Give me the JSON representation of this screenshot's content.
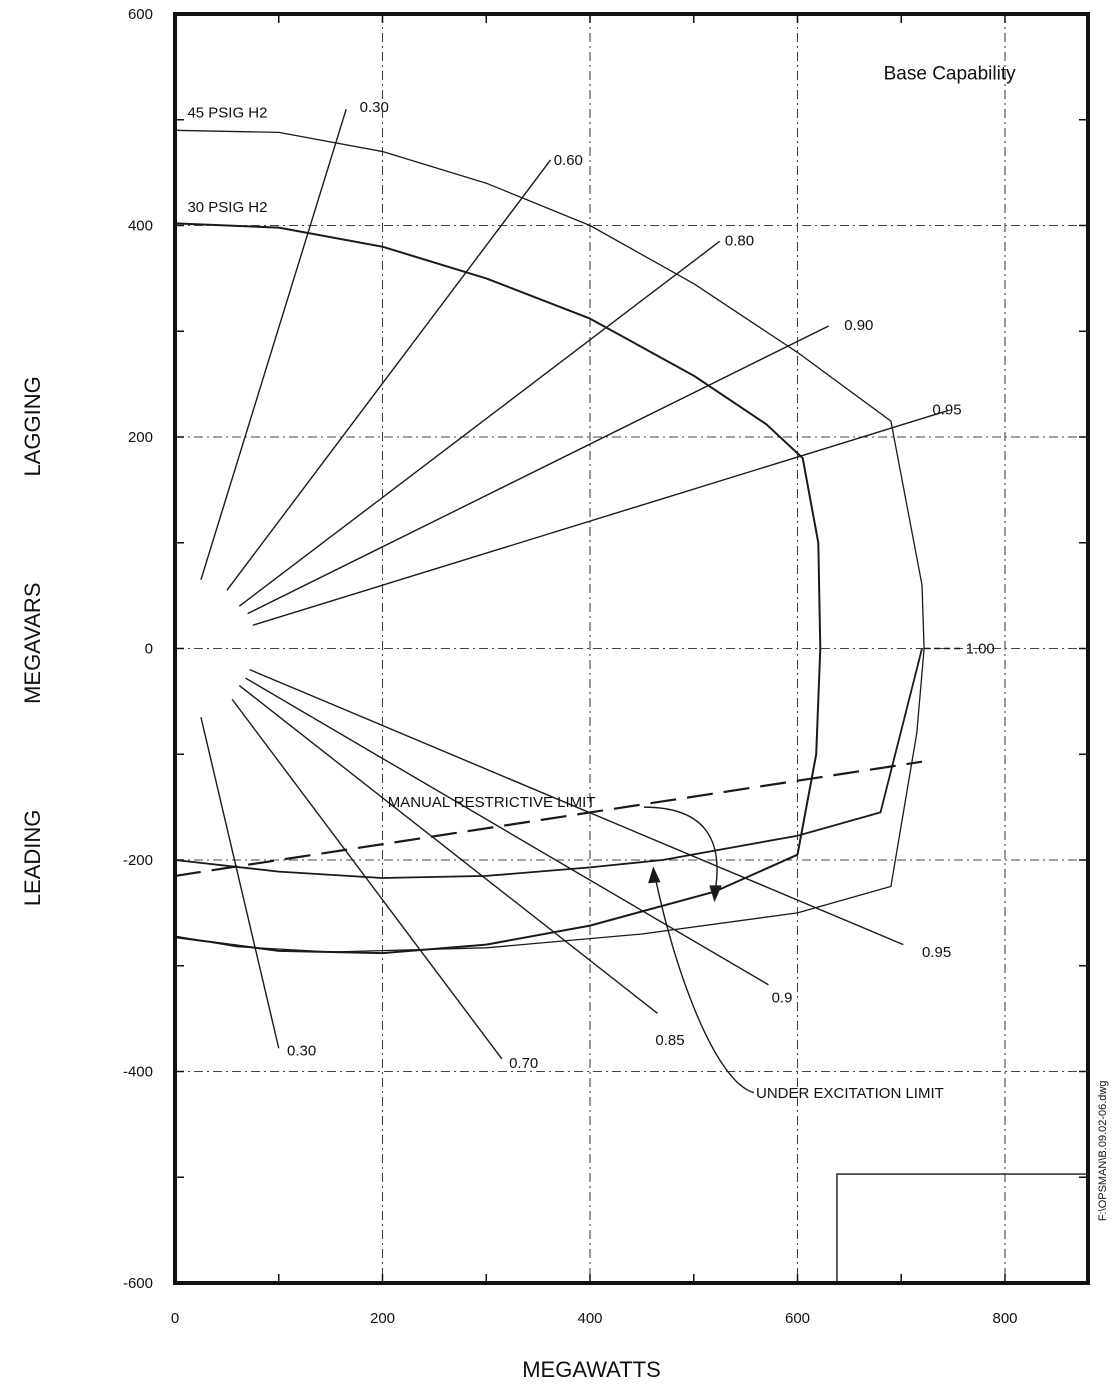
{
  "chart_data": {
    "type": "line",
    "title": "",
    "panel_label": "Base Capability",
    "xlabel": "MEGAWATTS",
    "ylabel_parts": [
      "LEADING",
      "MEGAVARS",
      "LAGGING"
    ],
    "file_ref": "F:\\OPSMAN\\B.09.02-06.dwg",
    "xlim": [
      0,
      880
    ],
    "ylim": [
      -600,
      600
    ],
    "xticks": [
      0,
      200,
      400,
      600,
      800
    ],
    "yticks": [
      600,
      400,
      200,
      0,
      -200,
      -400,
      -600
    ],
    "xtick_labels": [
      "0",
      "200",
      "400",
      "600",
      "800"
    ],
    "ytick_labels": [
      "600",
      "400",
      "200",
      "0",
      "-200",
      "-400",
      "-600"
    ],
    "grid": true,
    "series": [
      {
        "name": "45 PSIG H2",
        "style": "solid",
        "stroke": "#1a1a1a",
        "width": 1.3,
        "x": [
          0,
          100,
          200,
          300,
          400,
          500,
          600,
          690,
          720,
          722
        ],
        "y": [
          490,
          488,
          470,
          440,
          400,
          345,
          280,
          215,
          60,
          0
        ]
      },
      {
        "name": "30 PSIG H2",
        "style": "solid",
        "stroke": "#1a1a1a",
        "width": 2,
        "x": [
          0,
          100,
          200,
          300,
          400,
          500,
          570,
          605,
          620,
          622,
          618,
          600
        ],
        "y": [
          402,
          398,
          380,
          350,
          312,
          258,
          212,
          180,
          100,
          0,
          -100,
          -195
        ]
      },
      {
        "name": "45 PSIG H2 leading",
        "style": "solid",
        "stroke": "#1a1a1a",
        "width": 1.3,
        "x": [
          722,
          715,
          690,
          600,
          450,
          300,
          150,
          60,
          0
        ],
        "y": [
          0,
          -80,
          -225,
          -250,
          -270,
          -283,
          -287,
          -282,
          -272
        ]
      },
      {
        "name": "30 PSIG H2 leading",
        "style": "solid",
        "stroke": "#1a1a1a",
        "width": 2,
        "x": [
          600,
          520,
          400,
          300,
          200,
          100,
          0
        ],
        "y": [
          -195,
          -230,
          -262,
          -280,
          -288,
          -286,
          -273
        ]
      },
      {
        "name": "UNDER EXCITATION LIMIT",
        "style": "solid",
        "stroke": "#1a1a1a",
        "width": 1.8,
        "x": [
          0,
          100,
          200,
          300,
          400,
          470,
          600,
          680,
          720
        ],
        "y": [
          -200,
          -211,
          -217,
          -215,
          -207,
          -200,
          -177,
          -155,
          0
        ]
      },
      {
        "name": "MANUAL RESTRICTIVE LIMIT",
        "style": "dashed",
        "stroke": "#1a1a1a",
        "width": 2.2,
        "x": [
          0,
          720
        ],
        "y": [
          -215,
          -107
        ]
      }
    ],
    "pf_lines": [
      {
        "label": "0.30",
        "x1": 25,
        "y1": 65,
        "x2": 165,
        "y2": 510,
        "lx": 178,
        "ly": 512
      },
      {
        "label": "0.60",
        "x1": 50,
        "y1": 55,
        "x2": 362,
        "y2": 462,
        "lx": 365,
        "ly": 462
      },
      {
        "label": "0.80",
        "x1": 62,
        "y1": 40,
        "x2": 525,
        "y2": 385,
        "lx": 530,
        "ly": 386
      },
      {
        "label": "0.90",
        "x1": 70,
        "y1": 33,
        "x2": 630,
        "y2": 305,
        "lx": 645,
        "ly": 306
      },
      {
        "label": "0.95",
        "x1": 75,
        "y1": 22,
        "x2": 745,
        "y2": 225,
        "lx": 730,
        "ly": 226
      },
      {
        "label": "1.00",
        "x1": 722,
        "y1": 0,
        "x2": 760,
        "y2": 0,
        "lx": 762,
        "ly": 0
      },
      {
        "label": "0.30",
        "x1": 25,
        "y1": -65,
        "x2": 100,
        "y2": -378,
        "lx": 108,
        "ly": -380
      },
      {
        "label": "0.70",
        "x1": 55,
        "y1": -48,
        "x2": 315,
        "y2": -388,
        "lx": 322,
        "ly": -392
      },
      {
        "label": "0.85",
        "x1": 62,
        "y1": -35,
        "x2": 465,
        "y2": -345,
        "lx": 463,
        "ly": -370
      },
      {
        "label": "0.9",
        "x1": 68,
        "y1": -28,
        "x2": 572,
        "y2": -318,
        "lx": 575,
        "ly": -330
      },
      {
        "label": "0.95",
        "x1": 72,
        "y1": -20,
        "x2": 702,
        "y2": -280,
        "lx": 720,
        "ly": -287
      }
    ],
    "annotations": [
      {
        "text": "45 PSIG H2",
        "x": 12,
        "y": 502
      },
      {
        "text": "30 PSIG H2",
        "x": 12,
        "y": 413
      },
      {
        "text": "MANUAL RESTRICTIVE LIMIT",
        "x": 205,
        "y": -150
      },
      {
        "text": "UNDER EXCITATION LIMIT",
        "x": 560,
        "y": -425
      }
    ]
  }
}
